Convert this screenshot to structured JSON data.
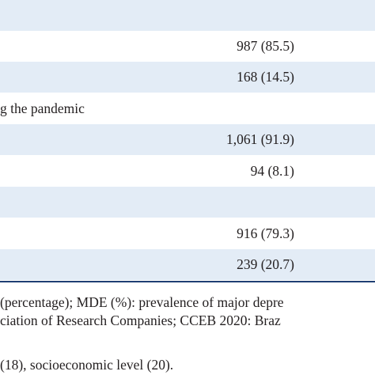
{
  "table": {
    "rows": [
      {
        "value": "987 (85.5)"
      },
      {
        "value": "168 (14.5)"
      },
      {
        "label": "g the pandemic"
      },
      {
        "value": "1,061 (91.9)"
      },
      {
        "value": "94 (8.1)"
      },
      {
        "value": "916 (79.3)"
      },
      {
        "value": "239 (20.7)"
      }
    ]
  },
  "footnote": {
    "lines": [
      "(percentage); MDE (%): prevalence of major depre",
      "ciation of Research Companies; CCEB 2020: Braz",
      "(18), socioeconomic level (20)."
    ]
  }
}
